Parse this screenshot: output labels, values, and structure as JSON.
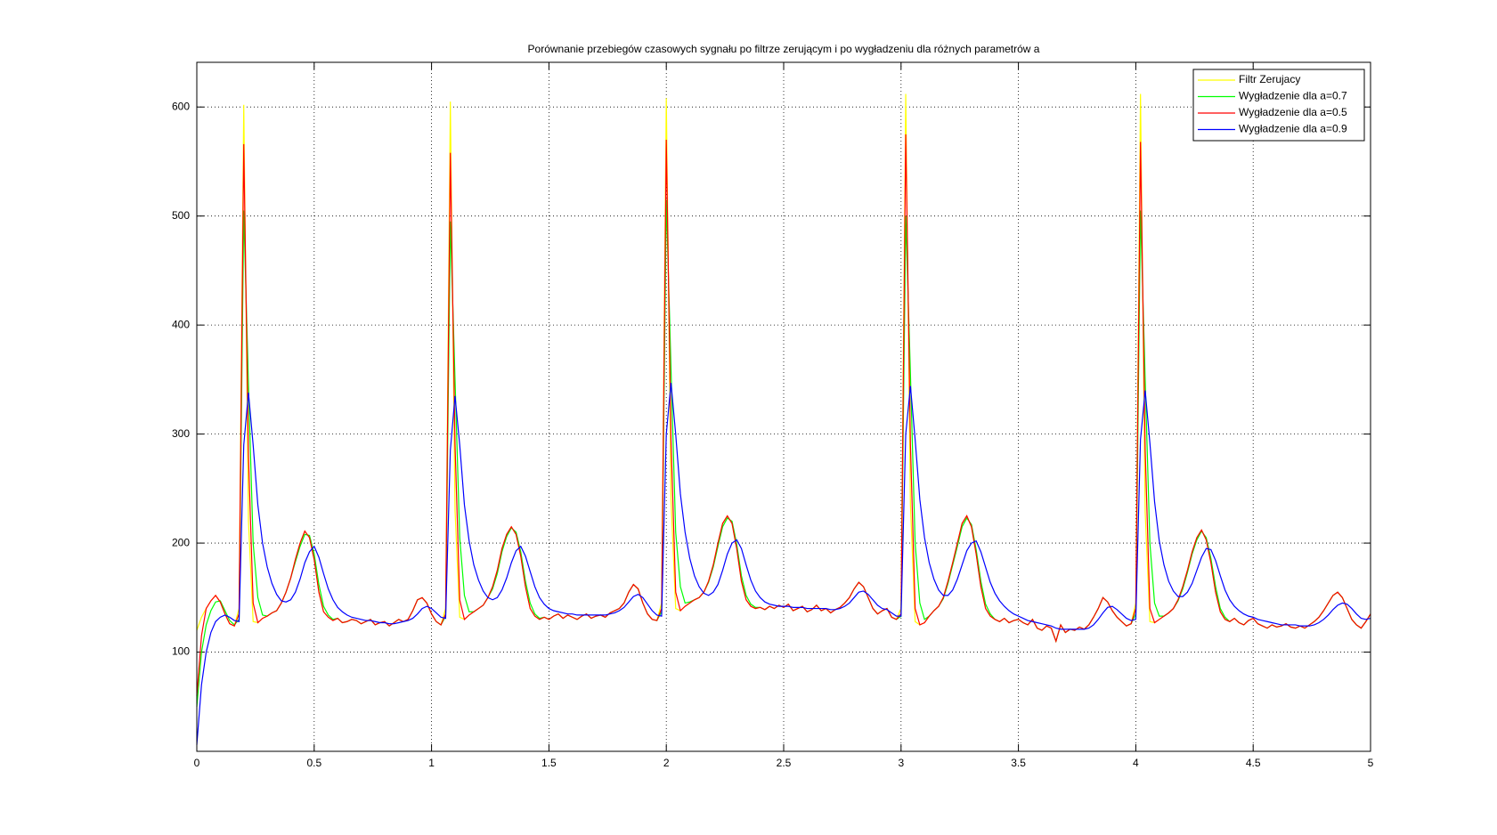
{
  "chart_data": {
    "type": "line",
    "title": "Porównanie przebiegów czasowych sygnału po filtrze zerującym i po wygładzeniu dla różnych parametrów a",
    "x": [
      0,
      0.02,
      0.04,
      0.06,
      0.08,
      0.1,
      0.12,
      0.14,
      0.16,
      0.18,
      0.2,
      0.22,
      0.24,
      0.26,
      0.28,
      0.3,
      0.32,
      0.34,
      0.36,
      0.38,
      0.4,
      0.42,
      0.44,
      0.46,
      0.48,
      0.5,
      0.52,
      0.54,
      0.56,
      0.58,
      0.6,
      0.62,
      0.64,
      0.66,
      0.68,
      0.7,
      0.72,
      0.74,
      0.76,
      0.78,
      0.8,
      0.82,
      0.84,
      0.86,
      0.88,
      0.9,
      0.92,
      0.94,
      0.96,
      0.98,
      1,
      1.02,
      1.04,
      1.06,
      1.08,
      1.1,
      1.12,
      1.14,
      1.16,
      1.18,
      1.2,
      1.22,
      1.24,
      1.26,
      1.28,
      1.3,
      1.32,
      1.34,
      1.36,
      1.38,
      1.4,
      1.42,
      1.44,
      1.46,
      1.48,
      1.5,
      1.52,
      1.54,
      1.56,
      1.58,
      1.6,
      1.62,
      1.64,
      1.66,
      1.68,
      1.7,
      1.72,
      1.74,
      1.76,
      1.78,
      1.8,
      1.82,
      1.84,
      1.86,
      1.88,
      1.9,
      1.92,
      1.94,
      1.96,
      1.98,
      2,
      2.02,
      2.04,
      2.06,
      2.08,
      2.1,
      2.12,
      2.14,
      2.16,
      2.18,
      2.2,
      2.22,
      2.24,
      2.26,
      2.28,
      2.3,
      2.32,
      2.34,
      2.36,
      2.38,
      2.4,
      2.42,
      2.44,
      2.46,
      2.48,
      2.5,
      2.52,
      2.54,
      2.56,
      2.58,
      2.6,
      2.62,
      2.64,
      2.66,
      2.68,
      2.7,
      2.72,
      2.74,
      2.76,
      2.78,
      2.8,
      2.82,
      2.84,
      2.86,
      2.88,
      2.9,
      2.92,
      2.94,
      2.96,
      2.98,
      3,
      3.02,
      3.04,
      3.06,
      3.08,
      3.1,
      3.12,
      3.14,
      3.16,
      3.18,
      3.2,
      3.22,
      3.24,
      3.26,
      3.28,
      3.3,
      3.32,
      3.34,
      3.36,
      3.38,
      3.4,
      3.42,
      3.44,
      3.46,
      3.48,
      3.5,
      3.52,
      3.54,
      3.56,
      3.58,
      3.6,
      3.62,
      3.64,
      3.66,
      3.68,
      3.7,
      3.72,
      3.74,
      3.76,
      3.78,
      3.8,
      3.82,
      3.84,
      3.86,
      3.88,
      3.9,
      3.92,
      3.94,
      3.96,
      3.98,
      4,
      4.02,
      4.04,
      4.06,
      4.08,
      4.1,
      4.12,
      4.14,
      4.16,
      4.18,
      4.2,
      4.22,
      4.24,
      4.26,
      4.28,
      4.3,
      4.32,
      4.34,
      4.36,
      4.38,
      4.4,
      4.42,
      4.44,
      4.46,
      4.48,
      4.5,
      4.52,
      4.54,
      4.56,
      4.58,
      4.6,
      4.62,
      4.64,
      4.66,
      4.68,
      4.7,
      4.72,
      4.74,
      4.76,
      4.78,
      4.8,
      4.82,
      4.84,
      4.86,
      4.88,
      4.9,
      4.92,
      4.94,
      4.96,
      4.98,
      5
    ],
    "series": [
      {
        "name": "Filtr Zerujacy",
        "color": "#ffff00",
        "values": [
          120,
          132,
          140,
          147,
          152,
          146,
          135,
          126,
          124,
          140,
          602,
          220,
          128,
          127,
          131,
          133,
          136,
          138,
          145,
          155,
          168,
          185,
          200,
          211,
          205,
          185,
          155,
          137,
          132,
          129,
          131,
          127,
          128,
          130,
          129,
          126,
          128,
          130,
          125,
          127,
          128,
          124,
          127,
          130,
          128,
          130,
          138,
          148,
          150,
          145,
          135,
          128,
          125,
          140,
          605,
          230,
          132,
          130,
          134,
          137,
          140,
          143,
          150,
          160,
          175,
          195,
          208,
          215,
          208,
          188,
          160,
          140,
          133,
          130,
          132,
          130,
          133,
          135,
          131,
          134,
          132,
          130,
          133,
          135,
          131,
          133,
          134,
          132,
          136,
          138,
          140,
          145,
          155,
          162,
          158,
          145,
          135,
          130,
          129,
          145,
          608,
          240,
          140,
          138,
          142,
          145,
          148,
          150,
          155,
          165,
          180,
          200,
          218,
          225,
          218,
          195,
          165,
          148,
          142,
          140,
          141,
          139,
          142,
          140,
          143,
          141,
          144,
          138,
          140,
          142,
          137,
          139,
          143,
          138,
          140,
          136,
          139,
          141,
          145,
          150,
          158,
          164,
          160,
          150,
          140,
          135,
          138,
          140,
          132,
          130,
          140,
          612,
          235,
          128,
          125,
          127,
          133,
          138,
          142,
          150,
          165,
          182,
          200,
          218,
          225,
          215,
          190,
          160,
          140,
          133,
          130,
          128,
          131,
          127,
          129,
          130,
          127,
          125,
          130,
          122,
          120,
          124,
          122,
          110,
          125,
          118,
          121,
          120,
          123,
          121,
          125,
          132,
          140,
          150,
          146,
          138,
          132,
          128,
          124,
          126,
          145,
          612,
          228,
          128,
          127,
          130,
          133,
          136,
          140,
          148,
          160,
          175,
          192,
          205,
          212,
          203,
          182,
          155,
          137,
          130,
          128,
          131,
          127,
          125,
          129,
          131,
          126,
          124,
          122,
          125,
          123,
          124,
          126,
          123,
          122,
          124,
          122,
          125,
          128,
          132,
          138,
          145,
          152,
          155,
          150,
          140,
          130,
          125,
          122,
          128,
          135
        ]
      },
      {
        "name": "Wygładzenie dla a=0.7",
        "color": "#00ff00",
        "values": [
          50,
          100,
          125,
          138,
          146,
          147,
          138,
          129,
          125,
          130,
          505,
          345,
          200,
          150,
          134,
          133,
          136,
          138,
          145,
          155,
          168,
          183,
          197,
          208,
          207,
          190,
          162,
          142,
          134,
          130,
          131,
          127,
          128,
          130,
          129,
          126,
          128,
          130,
          125,
          127,
          128,
          124,
          127,
          130,
          128,
          130,
          138,
          148,
          150,
          145,
          135,
          128,
          125,
          133,
          495,
          350,
          205,
          152,
          137,
          137,
          140,
          143,
          150,
          158,
          172,
          192,
          206,
          214,
          210,
          192,
          165,
          145,
          135,
          131,
          132,
          130,
          133,
          135,
          131,
          134,
          132,
          130,
          133,
          135,
          131,
          133,
          134,
          132,
          136,
          138,
          140,
          145,
          155,
          162,
          158,
          145,
          135,
          130,
          129,
          137,
          515,
          360,
          210,
          160,
          145,
          146,
          148,
          150,
          155,
          164,
          178,
          197,
          215,
          223,
          220,
          199,
          170,
          152,
          144,
          141,
          141,
          139,
          142,
          140,
          143,
          141,
          144,
          138,
          140,
          142,
          137,
          139,
          143,
          138,
          140,
          136,
          139,
          141,
          145,
          150,
          158,
          164,
          160,
          150,
          140,
          135,
          138,
          140,
          132,
          130,
          133,
          500,
          355,
          200,
          145,
          130,
          133,
          138,
          142,
          149,
          163,
          180,
          197,
          215,
          223,
          217,
          194,
          165,
          144,
          135,
          130,
          128,
          131,
          127,
          129,
          130,
          127,
          125,
          130,
          122,
          120,
          124,
          122,
          110,
          125,
          118,
          121,
          120,
          123,
          121,
          125,
          132,
          140,
          150,
          146,
          138,
          132,
          128,
          124,
          126,
          135,
          505,
          350,
          200,
          145,
          133,
          133,
          136,
          140,
          147,
          158,
          173,
          190,
          203,
          211,
          205,
          186,
          160,
          140,
          132,
          128,
          131,
          127,
          125,
          129,
          131,
          126,
          124,
          122,
          125,
          123,
          124,
          126,
          123,
          122,
          124,
          122,
          125,
          128,
          132,
          138,
          145,
          152,
          155,
          150,
          140,
          130,
          125,
          122,
          128,
          135
        ]
      },
      {
        "name": "Wygładzenie dla a=0.5",
        "color": "#ff0000",
        "values": [
          60,
          115,
          140,
          147,
          152,
          146,
          135,
          126,
          124,
          135,
          566,
          280,
          145,
          127,
          131,
          133,
          136,
          138,
          145,
          155,
          168,
          185,
          200,
          211,
          205,
          185,
          155,
          137,
          132,
          129,
          131,
          127,
          128,
          130,
          129,
          126,
          128,
          130,
          125,
          127,
          128,
          124,
          127,
          130,
          128,
          130,
          138,
          148,
          150,
          145,
          135,
          128,
          125,
          135,
          558,
          290,
          148,
          130,
          134,
          137,
          140,
          143,
          150,
          160,
          175,
          195,
          208,
          215,
          208,
          188,
          160,
          140,
          133,
          130,
          132,
          130,
          133,
          135,
          131,
          134,
          132,
          130,
          133,
          135,
          131,
          133,
          134,
          132,
          136,
          138,
          140,
          145,
          155,
          162,
          158,
          145,
          135,
          130,
          129,
          140,
          570,
          295,
          155,
          138,
          142,
          145,
          148,
          150,
          155,
          165,
          180,
          200,
          218,
          225,
          218,
          195,
          165,
          148,
          142,
          140,
          141,
          139,
          142,
          140,
          143,
          141,
          144,
          138,
          140,
          142,
          137,
          139,
          143,
          138,
          140,
          136,
          139,
          141,
          145,
          150,
          158,
          164,
          160,
          150,
          140,
          135,
          138,
          140,
          132,
          130,
          135,
          575,
          290,
          140,
          125,
          127,
          133,
          138,
          142,
          150,
          165,
          182,
          200,
          218,
          225,
          215,
          190,
          160,
          140,
          133,
          130,
          128,
          131,
          127,
          129,
          130,
          127,
          125,
          130,
          122,
          120,
          124,
          122,
          110,
          125,
          118,
          121,
          120,
          123,
          121,
          125,
          132,
          140,
          150,
          146,
          138,
          132,
          128,
          124,
          126,
          140,
          568,
          285,
          140,
          127,
          130,
          133,
          136,
          140,
          148,
          160,
          175,
          192,
          205,
          212,
          203,
          182,
          155,
          137,
          130,
          128,
          131,
          127,
          125,
          129,
          131,
          126,
          124,
          122,
          125,
          123,
          124,
          126,
          123,
          122,
          124,
          122,
          125,
          128,
          132,
          138,
          145,
          152,
          155,
          150,
          140,
          130,
          125,
          122,
          128,
          135
        ]
      },
      {
        "name": "Wygładzenie dla a=0.9",
        "color": "#0000ff",
        "values": [
          15,
          70,
          100,
          118,
          128,
          132,
          134,
          132,
          129,
          128,
          290,
          338,
          290,
          235,
          200,
          178,
          163,
          153,
          147,
          146,
          148,
          155,
          167,
          182,
          192,
          197,
          187,
          172,
          158,
          148,
          141,
          137,
          134,
          132,
          131,
          130,
          129,
          129,
          128,
          127,
          127,
          126,
          126,
          127,
          128,
          129,
          131,
          135,
          140,
          142,
          140,
          136,
          132,
          131,
          285,
          335,
          290,
          235,
          202,
          180,
          166,
          156,
          150,
          148,
          150,
          157,
          168,
          182,
          193,
          197,
          188,
          174,
          160,
          150,
          144,
          140,
          138,
          137,
          136,
          135,
          135,
          134,
          134,
          134,
          134,
          134,
          134,
          134,
          135,
          136,
          138,
          141,
          146,
          151,
          153,
          150,
          144,
          138,
          134,
          133,
          300,
          347,
          300,
          245,
          210,
          186,
          170,
          160,
          154,
          152,
          155,
          162,
          175,
          190,
          200,
          203,
          195,
          180,
          166,
          156,
          150,
          146,
          144,
          143,
          142,
          142,
          142,
          141,
          141,
          141,
          140,
          140,
          140,
          140,
          140,
          139,
          139,
          140,
          142,
          145,
          150,
          155,
          156,
          153,
          148,
          143,
          140,
          139,
          136,
          133,
          133,
          300,
          344,
          295,
          240,
          205,
          182,
          167,
          157,
          152,
          152,
          157,
          167,
          180,
          193,
          200,
          202,
          192,
          178,
          164,
          154,
          147,
          142,
          138,
          135,
          133,
          131,
          129,
          128,
          127,
          126,
          125,
          124,
          122,
          121,
          121,
          121,
          121,
          121,
          121,
          122,
          125,
          130,
          136,
          141,
          142,
          139,
          135,
          131,
          129,
          130,
          295,
          340,
          292,
          238,
          202,
          180,
          165,
          156,
          151,
          151,
          155,
          163,
          175,
          187,
          195,
          194,
          184,
          170,
          157,
          148,
          142,
          138,
          135,
          133,
          132,
          130,
          129,
          128,
          127,
          126,
          125,
          125,
          125,
          125,
          124,
          124,
          124,
          125,
          127,
          130,
          134,
          139,
          143,
          145,
          144,
          140,
          135,
          131,
          130,
          131
        ]
      }
    ],
    "xlim": [
      0,
      5
    ],
    "xticks": [
      0,
      0.5,
      1,
      1.5,
      2,
      2.5,
      3,
      3.5,
      4,
      4.5,
      5
    ],
    "ylim": [
      9,
      641
    ],
    "yticks": [
      100,
      200,
      300,
      400,
      500,
      600
    ],
    "grid": true,
    "legend": "top-right"
  }
}
